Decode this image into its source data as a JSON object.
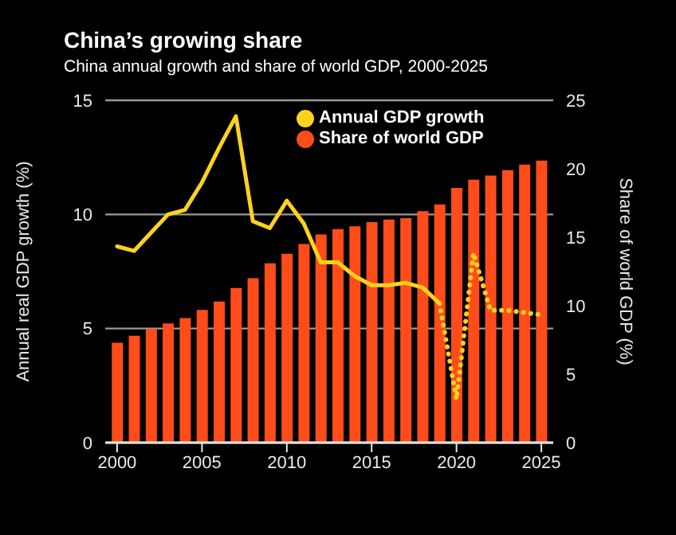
{
  "chart_data": {
    "type": "bar",
    "title": "China’s growing share",
    "subtitle": "China annual growth and share of world GDP, 2000-2025",
    "ylabel": "Annual real GDP growth (%)",
    "y2label": "Share of world GDP (%)",
    "x": [
      2000,
      2001,
      2002,
      2003,
      2004,
      2005,
      2006,
      2007,
      2008,
      2009,
      2010,
      2011,
      2012,
      2013,
      2014,
      2015,
      2016,
      2017,
      2018,
      2019,
      2020,
      2021,
      2022,
      2023,
      2024,
      2025
    ],
    "series": [
      {
        "type": "line",
        "name": "Annual GDP growth",
        "color": "#ffd21f",
        "values": [
          8.6,
          8.4,
          9.2,
          10.0,
          10.2,
          11.4,
          12.9,
          14.3,
          9.7,
          9.4,
          10.6,
          9.6,
          7.9,
          7.9,
          7.3,
          6.9,
          6.9,
          7.0,
          6.8,
          6.1,
          null,
          null,
          null,
          null,
          null,
          null
        ]
      },
      {
        "type": "line",
        "color": "#ffd21f",
        "line_style": "dotted",
        "values": [
          null,
          null,
          null,
          null,
          null,
          null,
          null,
          null,
          null,
          null,
          null,
          null,
          null,
          null,
          null,
          null,
          null,
          null,
          null,
          6.1,
          1.9,
          8.3,
          5.8,
          5.8,
          5.7,
          5.6
        ]
      },
      {
        "name": "Share of world GDP",
        "color": "#ff4c1a",
        "axis": "y2",
        "values": [
          7.3,
          7.8,
          8.3,
          8.7,
          9.1,
          9.7,
          10.3,
          11.3,
          12.0,
          13.1,
          13.8,
          14.5,
          15.2,
          15.6,
          15.8,
          16.1,
          16.3,
          16.4,
          16.9,
          17.4,
          18.6,
          19.2,
          19.5,
          19.9,
          20.3,
          20.6
        ]
      }
    ],
    "xlim": [
      1999.3,
      2025.7
    ],
    "xticks": [
      2000,
      2005,
      2010,
      2015,
      2020,
      2025
    ],
    "ylim": [
      0,
      15
    ],
    "yticks": [
      0,
      5,
      10,
      15
    ],
    "y2lim": [
      0,
      25
    ],
    "y2ticks": [
      0,
      5,
      10,
      15,
      20,
      25
    ],
    "grid": "y",
    "legend": "top right",
    "marker": "none",
    "line_style": "solid"
  }
}
